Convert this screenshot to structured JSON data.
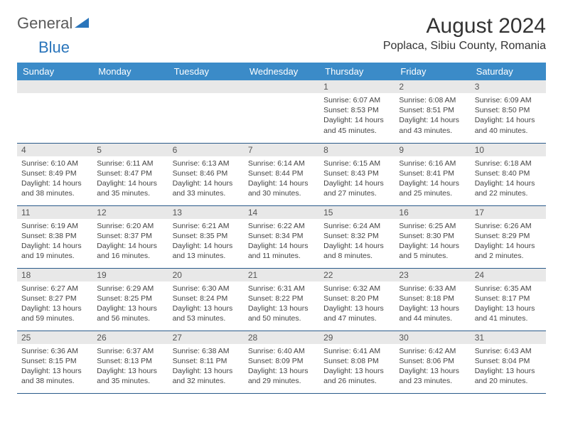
{
  "logo": {
    "general": "General",
    "blue": "Blue"
  },
  "title": "August 2024",
  "location": "Poplaca, Sibiu County, Romania",
  "colors": {
    "header_bg": "#3b8bc8",
    "header_text": "#ffffff",
    "daynum_bg": "#e8e8e8",
    "border": "#2a5a8a",
    "logo_blue": "#2a75bb"
  },
  "day_headers": [
    "Sunday",
    "Monday",
    "Tuesday",
    "Wednesday",
    "Thursday",
    "Friday",
    "Saturday"
  ],
  "weeks": [
    [
      null,
      null,
      null,
      null,
      {
        "n": "1",
        "sr": "6:07 AM",
        "ss": "8:53 PM",
        "dl": "14 hours and 45 minutes."
      },
      {
        "n": "2",
        "sr": "6:08 AM",
        "ss": "8:51 PM",
        "dl": "14 hours and 43 minutes."
      },
      {
        "n": "3",
        "sr": "6:09 AM",
        "ss": "8:50 PM",
        "dl": "14 hours and 40 minutes."
      }
    ],
    [
      {
        "n": "4",
        "sr": "6:10 AM",
        "ss": "8:49 PM",
        "dl": "14 hours and 38 minutes."
      },
      {
        "n": "5",
        "sr": "6:11 AM",
        "ss": "8:47 PM",
        "dl": "14 hours and 35 minutes."
      },
      {
        "n": "6",
        "sr": "6:13 AM",
        "ss": "8:46 PM",
        "dl": "14 hours and 33 minutes."
      },
      {
        "n": "7",
        "sr": "6:14 AM",
        "ss": "8:44 PM",
        "dl": "14 hours and 30 minutes."
      },
      {
        "n": "8",
        "sr": "6:15 AM",
        "ss": "8:43 PM",
        "dl": "14 hours and 27 minutes."
      },
      {
        "n": "9",
        "sr": "6:16 AM",
        "ss": "8:41 PM",
        "dl": "14 hours and 25 minutes."
      },
      {
        "n": "10",
        "sr": "6:18 AM",
        "ss": "8:40 PM",
        "dl": "14 hours and 22 minutes."
      }
    ],
    [
      {
        "n": "11",
        "sr": "6:19 AM",
        "ss": "8:38 PM",
        "dl": "14 hours and 19 minutes."
      },
      {
        "n": "12",
        "sr": "6:20 AM",
        "ss": "8:37 PM",
        "dl": "14 hours and 16 minutes."
      },
      {
        "n": "13",
        "sr": "6:21 AM",
        "ss": "8:35 PM",
        "dl": "14 hours and 13 minutes."
      },
      {
        "n": "14",
        "sr": "6:22 AM",
        "ss": "8:34 PM",
        "dl": "14 hours and 11 minutes."
      },
      {
        "n": "15",
        "sr": "6:24 AM",
        "ss": "8:32 PM",
        "dl": "14 hours and 8 minutes."
      },
      {
        "n": "16",
        "sr": "6:25 AM",
        "ss": "8:30 PM",
        "dl": "14 hours and 5 minutes."
      },
      {
        "n": "17",
        "sr": "6:26 AM",
        "ss": "8:29 PM",
        "dl": "14 hours and 2 minutes."
      }
    ],
    [
      {
        "n": "18",
        "sr": "6:27 AM",
        "ss": "8:27 PM",
        "dl": "13 hours and 59 minutes."
      },
      {
        "n": "19",
        "sr": "6:29 AM",
        "ss": "8:25 PM",
        "dl": "13 hours and 56 minutes."
      },
      {
        "n": "20",
        "sr": "6:30 AM",
        "ss": "8:24 PM",
        "dl": "13 hours and 53 minutes."
      },
      {
        "n": "21",
        "sr": "6:31 AM",
        "ss": "8:22 PM",
        "dl": "13 hours and 50 minutes."
      },
      {
        "n": "22",
        "sr": "6:32 AM",
        "ss": "8:20 PM",
        "dl": "13 hours and 47 minutes."
      },
      {
        "n": "23",
        "sr": "6:33 AM",
        "ss": "8:18 PM",
        "dl": "13 hours and 44 minutes."
      },
      {
        "n": "24",
        "sr": "6:35 AM",
        "ss": "8:17 PM",
        "dl": "13 hours and 41 minutes."
      }
    ],
    [
      {
        "n": "25",
        "sr": "6:36 AM",
        "ss": "8:15 PM",
        "dl": "13 hours and 38 minutes."
      },
      {
        "n": "26",
        "sr": "6:37 AM",
        "ss": "8:13 PM",
        "dl": "13 hours and 35 minutes."
      },
      {
        "n": "27",
        "sr": "6:38 AM",
        "ss": "8:11 PM",
        "dl": "13 hours and 32 minutes."
      },
      {
        "n": "28",
        "sr": "6:40 AM",
        "ss": "8:09 PM",
        "dl": "13 hours and 29 minutes."
      },
      {
        "n": "29",
        "sr": "6:41 AM",
        "ss": "8:08 PM",
        "dl": "13 hours and 26 minutes."
      },
      {
        "n": "30",
        "sr": "6:42 AM",
        "ss": "8:06 PM",
        "dl": "13 hours and 23 minutes."
      },
      {
        "n": "31",
        "sr": "6:43 AM",
        "ss": "8:04 PM",
        "dl": "13 hours and 20 minutes."
      }
    ]
  ],
  "labels": {
    "sunrise": "Sunrise:",
    "sunset": "Sunset:",
    "daylight": "Daylight:"
  }
}
